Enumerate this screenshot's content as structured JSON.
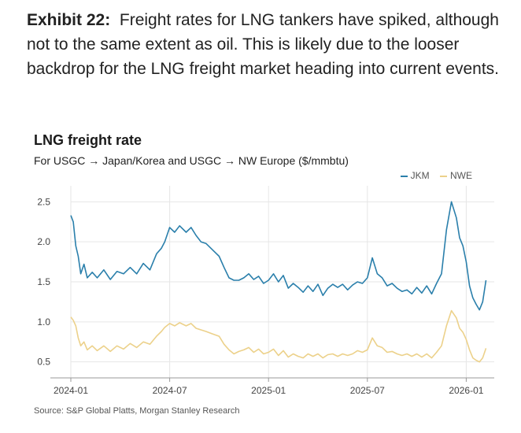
{
  "caption": {
    "label": "Exhibit 22:",
    "text": "Freight rates for LNG tankers have spiked, although not to the same extent as oil. This is likely due to the looser backdrop for the LNG freight market heading into current events."
  },
  "colors": {
    "jkm": "#2a7fab",
    "nwe": "#ecd18a",
    "grid": "#e6e6e6",
    "axis": "#999999"
  },
  "chart_data": {
    "type": "line",
    "title": "LNG freight rate",
    "subtitle": "For USGC → Japan/Korea and USGC → NW Europe ($/mmbtu)",
    "xlabel": "",
    "ylabel": "",
    "ylim": [
      0.3,
      2.7
    ],
    "y_ticks": [
      0.5,
      1.0,
      1.5,
      2.0,
      2.5
    ],
    "y_tick_labels": [
      "0.5",
      "1.0",
      "1.5",
      "2.0",
      "2.5"
    ],
    "x_range": [
      0,
      25.7
    ],
    "x_ticks": [
      0,
      6,
      12,
      18,
      24
    ],
    "x_tick_labels": [
      "2024-01",
      "2024-07",
      "2025-01",
      "2025-07",
      "2026-01"
    ],
    "grid": true,
    "legend_position": "top-right",
    "source": "Source: S&P Global Platts, Morgan Stanley Research",
    "series": [
      {
        "name": "JKM",
        "x": [
          0,
          0.15,
          0.3,
          0.45,
          0.6,
          0.8,
          1.0,
          1.3,
          1.6,
          2.0,
          2.4,
          2.8,
          3.2,
          3.6,
          4.0,
          4.4,
          4.8,
          5.2,
          5.5,
          5.7,
          6.0,
          6.3,
          6.6,
          7.0,
          7.3,
          7.6,
          7.9,
          8.2,
          8.6,
          9.0,
          9.3,
          9.6,
          9.9,
          10.2,
          10.5,
          10.8,
          11.1,
          11.4,
          11.7,
          12.0,
          12.3,
          12.6,
          12.9,
          13.2,
          13.5,
          13.8,
          14.1,
          14.4,
          14.7,
          15.0,
          15.3,
          15.6,
          15.9,
          16.2,
          16.5,
          16.8,
          17.1,
          17.4,
          17.7,
          18.0,
          18.3,
          18.6,
          18.9,
          19.2,
          19.5,
          19.8,
          20.1,
          20.4,
          20.7,
          21.0,
          21.3,
          21.6,
          21.9,
          22.2,
          22.5,
          22.8,
          23.1,
          23.4,
          23.6,
          23.8,
          24.0,
          24.2,
          24.4,
          24.6,
          24.8,
          25.0,
          25.2
        ],
        "values": [
          2.33,
          2.25,
          1.95,
          1.82,
          1.6,
          1.72,
          1.55,
          1.62,
          1.55,
          1.65,
          1.53,
          1.63,
          1.6,
          1.68,
          1.6,
          1.73,
          1.65,
          1.85,
          1.92,
          2.0,
          2.18,
          2.12,
          2.2,
          2.12,
          2.18,
          2.08,
          2.0,
          1.98,
          1.9,
          1.82,
          1.68,
          1.55,
          1.52,
          1.52,
          1.55,
          1.6,
          1.53,
          1.57,
          1.48,
          1.52,
          1.6,
          1.5,
          1.58,
          1.42,
          1.48,
          1.43,
          1.37,
          1.45,
          1.38,
          1.47,
          1.33,
          1.42,
          1.47,
          1.43,
          1.47,
          1.4,
          1.46,
          1.5,
          1.48,
          1.55,
          1.8,
          1.6,
          1.55,
          1.45,
          1.48,
          1.42,
          1.38,
          1.4,
          1.35,
          1.43,
          1.36,
          1.45,
          1.35,
          1.48,
          1.6,
          2.15,
          2.5,
          2.3,
          2.05,
          1.95,
          1.75,
          1.45,
          1.3,
          1.22,
          1.15,
          1.25,
          1.52
        ]
      },
      {
        "name": "NWE",
        "x": [
          0,
          0.15,
          0.3,
          0.45,
          0.6,
          0.8,
          1.0,
          1.3,
          1.6,
          2.0,
          2.4,
          2.8,
          3.2,
          3.6,
          4.0,
          4.4,
          4.8,
          5.2,
          5.5,
          5.7,
          6.0,
          6.3,
          6.6,
          7.0,
          7.3,
          7.6,
          7.9,
          8.2,
          8.6,
          9.0,
          9.3,
          9.6,
          9.9,
          10.2,
          10.5,
          10.8,
          11.1,
          11.4,
          11.7,
          12.0,
          12.3,
          12.6,
          12.9,
          13.2,
          13.5,
          13.8,
          14.1,
          14.4,
          14.7,
          15.0,
          15.3,
          15.6,
          15.9,
          16.2,
          16.5,
          16.8,
          17.1,
          17.4,
          17.7,
          18.0,
          18.3,
          18.6,
          18.9,
          19.2,
          19.5,
          19.8,
          20.1,
          20.4,
          20.7,
          21.0,
          21.3,
          21.6,
          21.9,
          22.2,
          22.5,
          22.8,
          23.1,
          23.4,
          23.6,
          23.8,
          24.0,
          24.2,
          24.4,
          24.6,
          24.8,
          25.0,
          25.2
        ],
        "values": [
          1.06,
          1.02,
          0.95,
          0.8,
          0.7,
          0.75,
          0.65,
          0.7,
          0.64,
          0.7,
          0.63,
          0.7,
          0.66,
          0.73,
          0.68,
          0.75,
          0.72,
          0.82,
          0.88,
          0.93,
          0.98,
          0.95,
          0.99,
          0.95,
          0.98,
          0.92,
          0.9,
          0.88,
          0.85,
          0.82,
          0.72,
          0.65,
          0.6,
          0.63,
          0.65,
          0.68,
          0.62,
          0.66,
          0.6,
          0.62,
          0.66,
          0.58,
          0.64,
          0.56,
          0.6,
          0.57,
          0.55,
          0.6,
          0.57,
          0.6,
          0.55,
          0.59,
          0.6,
          0.57,
          0.6,
          0.58,
          0.6,
          0.64,
          0.62,
          0.65,
          0.8,
          0.7,
          0.68,
          0.62,
          0.63,
          0.6,
          0.58,
          0.6,
          0.57,
          0.6,
          0.56,
          0.6,
          0.55,
          0.62,
          0.7,
          0.95,
          1.14,
          1.05,
          0.92,
          0.87,
          0.78,
          0.65,
          0.55,
          0.52,
          0.5,
          0.55,
          0.67
        ]
      }
    ]
  }
}
